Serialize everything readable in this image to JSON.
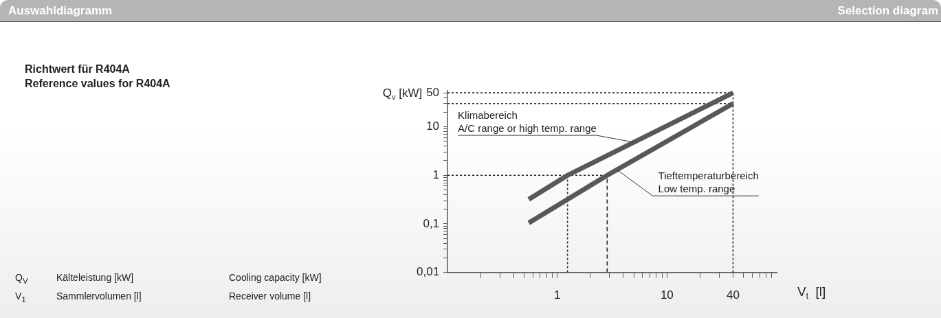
{
  "chart_data": {
    "type": "line",
    "title": "Auswahldiagramm",
    "subtitle": "Selection diagram",
    "ylabel": "Q$_{v}$ [kW]",
    "xlabel": "V$_{t}$  [l]",
    "log": "xy",
    "grid": false,
    "legend": false,
    "marker": "none",
    "line_style": "solid",
    "xlim": [
      0.1,
      100
    ],
    "xticks": [
      {
        "value": 0.2,
        "label": null
      },
      {
        "value": 0.3,
        "label": null
      },
      {
        "value": 0.4,
        "label": null
      },
      {
        "value": 0.5,
        "label": null
      },
      {
        "value": 0.6,
        "label": null
      },
      {
        "value": 0.7,
        "label": null
      },
      {
        "value": 0.8,
        "label": null
      },
      {
        "value": 0.9,
        "label": null
      },
      1,
      {
        "value": 2,
        "label": null
      },
      {
        "value": 3,
        "label": null
      },
      {
        "value": 4,
        "label": null
      },
      {
        "value": 5,
        "label": null
      },
      {
        "value": 6,
        "label": null
      },
      {
        "value": 7,
        "label": null
      },
      {
        "value": 8,
        "label": null
      },
      {
        "value": 9,
        "label": null
      },
      10,
      {
        "value": 20,
        "label": null
      },
      {
        "value": 30,
        "label": null
      },
      40,
      {
        "value": 50,
        "label": null
      },
      {
        "value": 60,
        "label": null
      },
      {
        "value": 70,
        "label": null
      },
      {
        "value": 80,
        "label": null
      },
      {
        "value": 90,
        "label": null
      }
    ],
    "ylim": [
      0.01,
      55
    ],
    "yticks": [
      {
        "value": 0.01,
        "label": "0,01"
      },
      {
        "value": 0.02,
        "label": null
      },
      {
        "value": 0.03,
        "label": null
      },
      {
        "value": 0.04,
        "label": null
      },
      {
        "value": 0.05,
        "label": null
      },
      {
        "value": 0.06,
        "label": null
      },
      {
        "value": 0.07,
        "label": null
      },
      {
        "value": 0.08,
        "label": null
      },
      {
        "value": 0.09,
        "label": null
      },
      {
        "value": 0.1,
        "label": "0,1"
      },
      {
        "value": 0.2,
        "label": null
      },
      {
        "value": 0.3,
        "label": null
      },
      {
        "value": 0.4,
        "label": null
      },
      {
        "value": 0.5,
        "label": null
      },
      {
        "value": 0.6,
        "label": null
      },
      {
        "value": 0.7,
        "label": null
      },
      {
        "value": 0.8,
        "label": null
      },
      {
        "value": 0.9,
        "label": null
      },
      1,
      {
        "value": 2,
        "label": null
      },
      {
        "value": 3,
        "label": null
      },
      {
        "value": 4,
        "label": null
      },
      {
        "value": 5,
        "label": null
      },
      {
        "value": 6,
        "label": null
      },
      {
        "value": 7,
        "label": null
      },
      {
        "value": 8,
        "label": null
      },
      {
        "value": 9,
        "label": null
      },
      10,
      {
        "value": 20,
        "label": null
      },
      {
        "value": 30,
        "label": null
      },
      {
        "value": 40,
        "label": null
      },
      50
    ],
    "series": [
      {
        "color": "#58585a",
        "x": [
          0.55,
          1.24,
          40
        ],
        "values": [
          0.32,
          1,
          50
        ]
      },
      {
        "color": "#58585a",
        "x": [
          0.55,
          2.85,
          40
        ],
        "values": [
          0.105,
          1,
          30
        ]
      }
    ],
    "ref_lines": [
      {
        "axis": "y",
        "value": 50,
        "line_style": "dotted"
      },
      {
        "axis": "y",
        "value": 30,
        "line_style": "dotted"
      },
      {
        "axis": "y",
        "value": 1,
        "line_style": "dotted"
      },
      {
        "axis": "x",
        "value": 1.24,
        "line_style": "dotted"
      },
      {
        "axis": "x",
        "value": 2.85,
        "line_style": "dashed"
      },
      {
        "axis": "x",
        "value": 40,
        "line_style": "dotted"
      }
    ],
    "annotations": [
      "Richtwert für R404A\nReference values for R404A",
      {
        "text": "Klimabereich\nA/C range or high temp. range",
        "x": 5,
        "y": 4.8
      },
      {
        "text": "Tieftemperaturbereich\nLow temp. range",
        "x": 3.5,
        "y": 1.3
      },
      "Q$_{V}$",
      "Kälteleistung [kW]",
      "Cooling capacity [kW]",
      "V$_{1}$",
      "Sammlervolumen [l]",
      "Receiver volume [l]"
    ]
  }
}
